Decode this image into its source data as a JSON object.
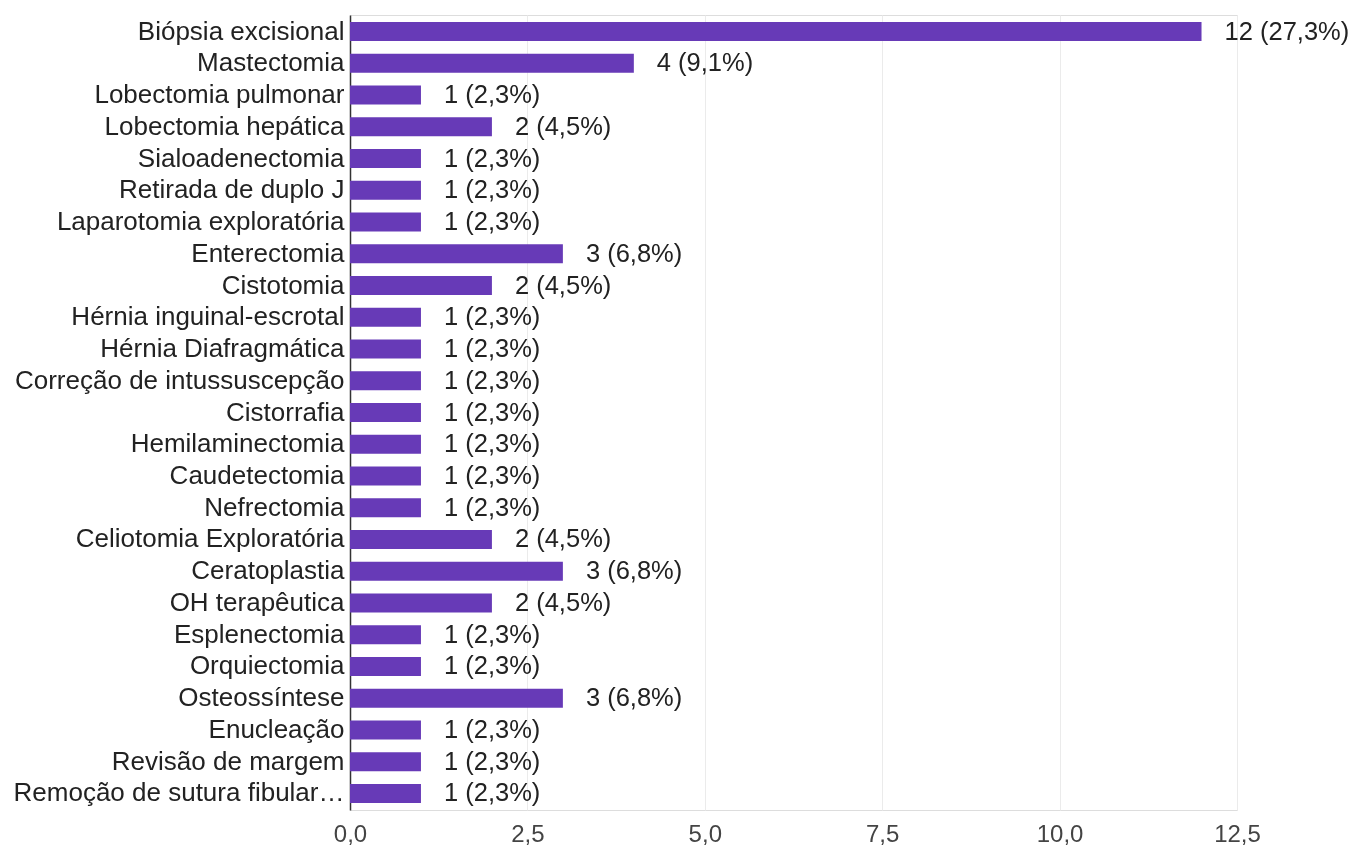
{
  "chart_data": {
    "type": "bar",
    "orientation": "horizontal",
    "color": "#673ab7",
    "categories": [
      "Biópsia excisional",
      "Mastectomia",
      "Lobectomia pulmonar",
      "Lobectomia hepática",
      "Sialoadenectomia",
      "Retirada de duplo J",
      "Laparotomia exploratória",
      "Enterectomia",
      "Cistotomia",
      "Hérnia inguinal-escrotal",
      "Hérnia Diafragmática",
      "Correção de intussuscepção",
      "Cistorrafia",
      "Hemilaminectomia",
      "Caudetectomia",
      "Nefrectomia",
      "Celiotomia Exploratória",
      "Ceratoplastia",
      "OH terapêutica",
      "Esplenectomia",
      "Orquiectomia",
      "Osteossíntese",
      "Enucleação",
      "Revisão de margem",
      "Remoção de sutura fibular…"
    ],
    "values": [
      12,
      4,
      1,
      2,
      1,
      1,
      1,
      3,
      2,
      1,
      1,
      1,
      1,
      1,
      1,
      1,
      2,
      3,
      2,
      1,
      1,
      3,
      1,
      1,
      1
    ],
    "value_labels": [
      "12 (27,3%)",
      "4 (9,1%)",
      "1 (2,3%)",
      "2 (4,5%)",
      "1 (2,3%)",
      "1 (2,3%)",
      "1 (2,3%)",
      "3 (6,8%)",
      "2 (4,5%)",
      "1 (2,3%)",
      "1 (2,3%)",
      "1 (2,3%)",
      "1 (2,3%)",
      "1 (2,3%)",
      "1 (2,3%)",
      "1 (2,3%)",
      "2 (4,5%)",
      "3 (6,8%)",
      "2 (4,5%)",
      "1 (2,3%)",
      "1 (2,3%)",
      "3 (6,8%)",
      "1 (2,3%)",
      "1 (2,3%)",
      "1 (2,3%)"
    ],
    "xlim": [
      0,
      12.5
    ],
    "xticks": [
      {
        "value": 0,
        "label": "0,0"
      },
      {
        "value": 2.5,
        "label": "2,5"
      },
      {
        "value": 5,
        "label": "5,0"
      },
      {
        "value": 7.5,
        "label": "7,5"
      },
      {
        "value": 10,
        "label": "10,0"
      },
      {
        "value": 12.5,
        "label": "12,5"
      }
    ],
    "grid": "x"
  }
}
